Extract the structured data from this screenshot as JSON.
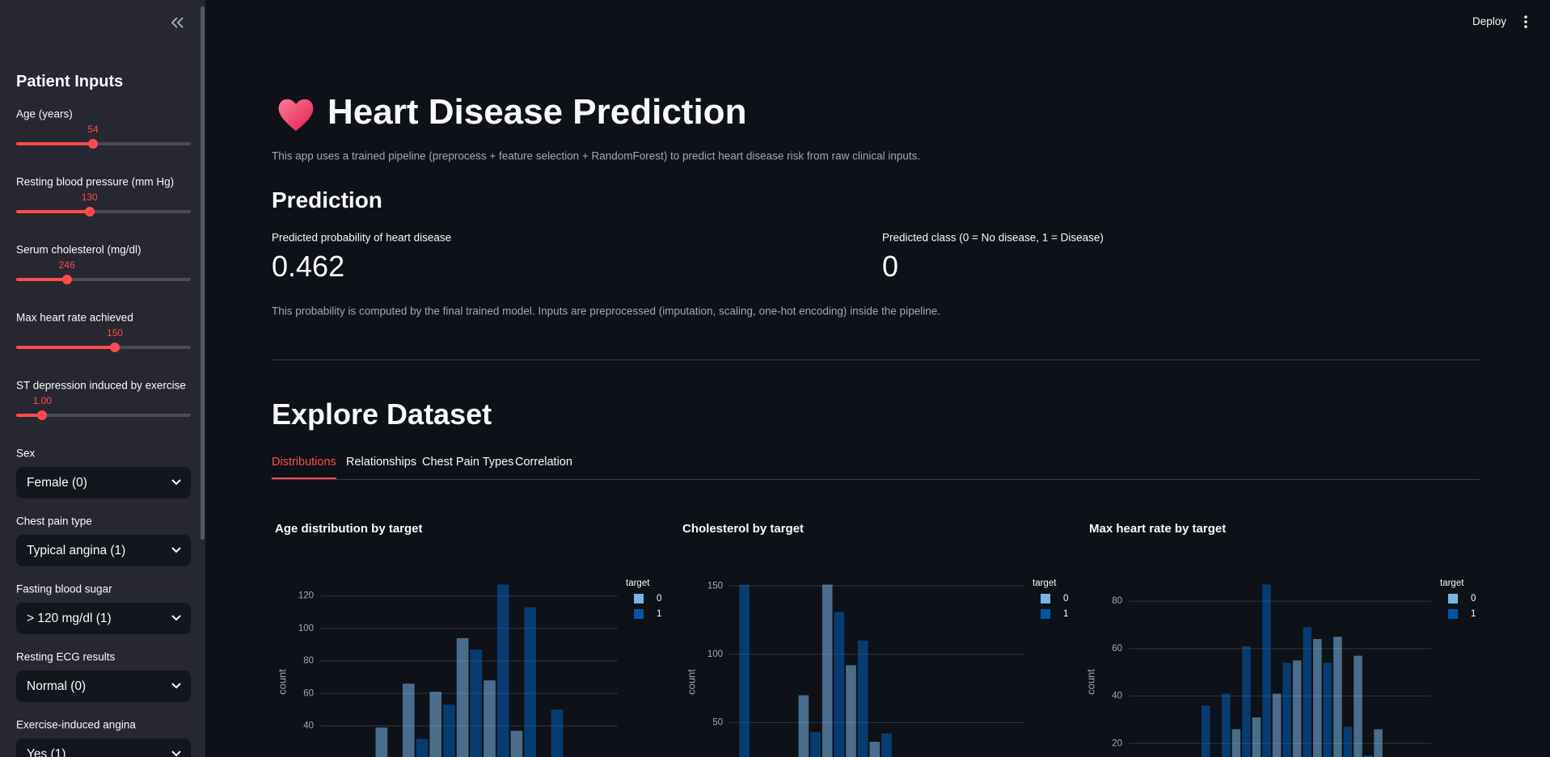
{
  "sidebar": {
    "title": "Patient Inputs",
    "sliders": [
      {
        "label": "Age (years)",
        "value": 54
      },
      {
        "label": "Resting blood pressure (mm Hg)",
        "value": 130
      },
      {
        "label": "Serum cholesterol (mg/dl)",
        "value": 246
      },
      {
        "label": "Max heart rate achieved",
        "value": 150
      },
      {
        "label": "ST depression induced by exercise",
        "value": "1.00"
      }
    ],
    "selects": [
      {
        "label": "Sex",
        "value": "Female (0)"
      },
      {
        "label": "Chest pain type",
        "value": "Typical angina (1)"
      },
      {
        "label": "Fasting blood sugar",
        "value": "> 120 mg/dl (1)"
      },
      {
        "label": "Resting ECG results",
        "value": "Normal (0)"
      },
      {
        "label": "Exercise-induced angina",
        "value": "Yes (1)"
      }
    ]
  },
  "header": {
    "action": "Deploy"
  },
  "title": "Heart Disease Prediction",
  "description": "This app uses a trained pipeline (preprocess + feature selection + RandomForest) to predict heart disease risk from raw clinical inputs.",
  "prediction": {
    "heading": "Prediction",
    "metrics": [
      {
        "label": "Predicted probability of heart disease",
        "value": 0.462
      },
      {
        "label": "Predicted class (0 = No disease, 1 = Disease)",
        "value": 0
      }
    ],
    "note": "This probability is computed by the final trained model. Inputs are preprocessed (imputation, scaling, one-hot encoding) inside the pipeline."
  },
  "explore": {
    "heading": "Explore Dataset",
    "tabs": [
      "Distributions",
      "Relationships",
      "Chest Pain Types",
      "Correlation"
    ],
    "active_tab": 0
  },
  "chart_data": [
    {
      "type": "bar",
      "title": "Age distribution by target",
      "y_label": "count",
      "legend_title": "target",
      "categories": [
        null,
        null,
        null,
        null,
        null,
        null,
        null
      ],
      "series": [
        {
          "name": "0",
          "color": "#83c9ff",
          "values": [
            39,
            66,
            61,
            94,
            68,
            37,
            null
          ]
        },
        {
          "name": "1",
          "color": "#0068c9",
          "values": [
            null,
            32,
            53,
            87,
            127,
            113,
            50
          ]
        }
      ],
      "ylim": [
        0,
        133.7
      ],
      "yticks": [
        40,
        60,
        80,
        100,
        120
      ],
      "grid": true
    },
    {
      "type": "bar",
      "title": "Cholesterol by target",
      "y_label": "count",
      "legend_title": "target",
      "categories": [
        null,
        null,
        null,
        null,
        null,
        null,
        null
      ],
      "series": [
        {
          "name": "0",
          "color": "#83c9ff",
          "values": [
            null,
            null,
            null,
            70,
            151,
            92,
            36
          ]
        },
        {
          "name": "1",
          "color": "#0068c9",
          "values": [
            151,
            null,
            null,
            43,
            131,
            110,
            42
          ]
        }
      ],
      "ylim": [
        0,
        159
      ],
      "yticks": [
        50,
        100,
        150
      ],
      "grid": true
    },
    {
      "type": "bar",
      "title": "Max heart rate by target",
      "y_label": "count",
      "legend_title": "target",
      "categories": [
        null,
        null,
        null,
        null,
        null,
        null,
        null,
        null,
        null,
        null
      ],
      "series": [
        {
          "name": "0",
          "color": "#83c9ff",
          "values": [
            null,
            null,
            26,
            31,
            41,
            55,
            64,
            65,
            57,
            26
          ]
        },
        {
          "name": "1",
          "color": "#0068c9",
          "values": [
            36,
            41,
            61,
            87,
            54,
            69,
            54,
            27,
            15,
            null
          ]
        }
      ],
      "ylim": [
        0,
        91.6
      ],
      "yticks": [
        20,
        40,
        60,
        80
      ],
      "grid": true
    }
  ]
}
